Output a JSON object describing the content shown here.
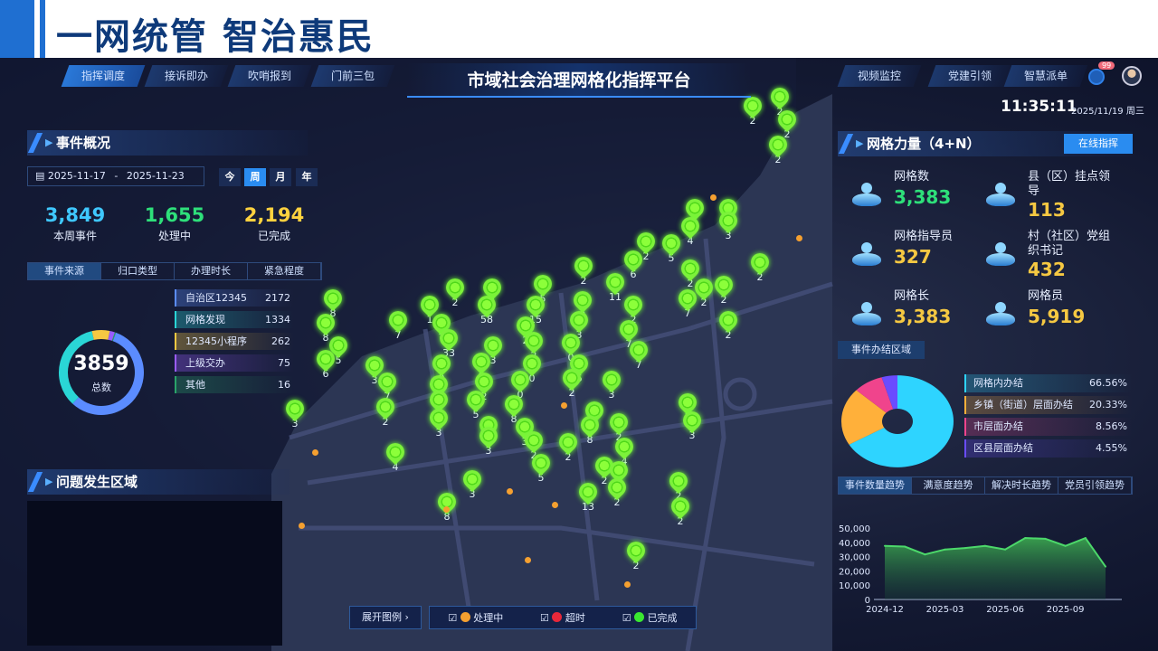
{
  "slide_title": "一网统管  智治惠民",
  "header": {
    "nav_left": [
      "指挥调度",
      "接诉即办",
      "吹哨报到",
      "门前三包"
    ],
    "active_nav": "指挥调度",
    "title": "市域社会治理网格化指挥平台",
    "nav_right": [
      "视频监控",
      "党建引领",
      "智慧派单"
    ],
    "notification_count": "99",
    "time": "11:35:11",
    "date": "2025/11/19 周三"
  },
  "events_overview": {
    "title": "事件概况",
    "date_start": "2025-11-17",
    "date_sep": "-",
    "date_end": "2025-11-23",
    "periods": [
      "今",
      "周",
      "月",
      "年"
    ],
    "active_period": "周",
    "kpis": [
      {
        "value": "3,849",
        "label": "本周事件",
        "color": "#3fc8ff"
      },
      {
        "value": "1,655",
        "label": "处理中",
        "color": "#2ee07a"
      },
      {
        "value": "2,194",
        "label": "已完成",
        "color": "#ffd23f"
      }
    ],
    "tabs": [
      "事件来源",
      "归口类型",
      "办理时长",
      "紧急程度"
    ],
    "active_tab": "事件来源",
    "total": "3859",
    "total_label": "总数",
    "sources": [
      {
        "name": "自治区12345",
        "value": 2172,
        "color": "#5b8cff"
      },
      {
        "name": "网格发现",
        "value": 1334,
        "color": "#2ad6d6"
      },
      {
        "name": "12345小程序",
        "value": 262,
        "color": "#f5c842"
      },
      {
        "name": "上级交办",
        "value": 75,
        "color": "#9a5cff"
      },
      {
        "name": "其他",
        "value": 16,
        "color": "#2aa36a"
      }
    ]
  },
  "problem_area": {
    "title": "问题发生区域"
  },
  "map": {
    "legend_toggle": "展开图例",
    "legend": [
      {
        "label": "处理中",
        "color": "#f5a030"
      },
      {
        "label": "超时",
        "color": "#e8283a"
      },
      {
        "label": "已完成",
        "color": "#3ae830"
      }
    ],
    "marker_counts": [
      2,
      2,
      2,
      2,
      2,
      3,
      3,
      4,
      2,
      5,
      6,
      2,
      2,
      2,
      11,
      5,
      5,
      2,
      2,
      2,
      7,
      2,
      2,
      58,
      1,
      15,
      8,
      8,
      7,
      7,
      3,
      2,
      2,
      5,
      6,
      3,
      33,
      3,
      2,
      7,
      7,
      0,
      9,
      9,
      0,
      6,
      3,
      7,
      3,
      2,
      0,
      2,
      3,
      5,
      8,
      8,
      3,
      2,
      3,
      3,
      3,
      2,
      3,
      8,
      2,
      2,
      4,
      3,
      4,
      5,
      2,
      4,
      3,
      3,
      13,
      2,
      2,
      2,
      8,
      2
    ]
  },
  "grid_force": {
    "title": "网格力量（4+N）",
    "button": "在线指挥",
    "items": [
      {
        "label": "网格数",
        "value": "3,383",
        "color": "#2ee07a",
        "icon": "grid-map-icon"
      },
      {
        "label": "县（区）挂点领导",
        "value": "113",
        "color": "#f5c842",
        "icon": "person-icon"
      },
      {
        "label": "网格指导员",
        "value": "327",
        "color": "#f5c842",
        "icon": "person-icon"
      },
      {
        "label": "村（社区）党组织书记",
        "value": "432",
        "color": "#f5c842",
        "icon": "person-icon"
      },
      {
        "label": "网格长",
        "value": "3,383",
        "color": "#f5c842",
        "icon": "person-icon"
      },
      {
        "label": "网格员",
        "value": "5,919",
        "color": "#f5c842",
        "icon": "person-icon"
      }
    ]
  },
  "completion_area": {
    "title": "事件办结区域",
    "items": [
      {
        "label": "网格内办结",
        "value": "66.56%",
        "pct": 66.56,
        "color": "#2ed4ff"
      },
      {
        "label": "乡镇（街道）层面办结",
        "value": "20.33%",
        "pct": 20.33,
        "color": "#ffb03a"
      },
      {
        "label": "市层面办结",
        "value": "8.56%",
        "pct": 8.56,
        "color": "#f0448c"
      },
      {
        "label": "区县层面办结",
        "value": "4.55%",
        "pct": 4.55,
        "color": "#6a4cff"
      }
    ]
  },
  "trend": {
    "tabs": [
      "事件数量趋势",
      "满意度趋势",
      "解决时长趋势",
      "党员引领趋势"
    ],
    "active_tab": "事件数量趋势"
  },
  "chart_data": {
    "type": "area",
    "x": [
      "2024-12",
      "2025-01",
      "2025-02",
      "2025-03",
      "2025-04",
      "2025-05",
      "2025-06",
      "2025-07",
      "2025-08",
      "2025-09",
      "2025-10",
      "2025-11"
    ],
    "x_tick_labels": [
      "2024-12",
      "2025-03",
      "2025-06",
      "2025-09"
    ],
    "values": [
      37500,
      37000,
      31500,
      35000,
      36000,
      37500,
      35000,
      43000,
      42500,
      37500,
      43000,
      23000
    ],
    "y_ticks": [
      "0",
      "10,000",
      "20,000",
      "30,000",
      "40,000",
      "50,000"
    ],
    "ylim": [
      0,
      50000
    ],
    "color": "#4cd86a",
    "grid": false
  }
}
